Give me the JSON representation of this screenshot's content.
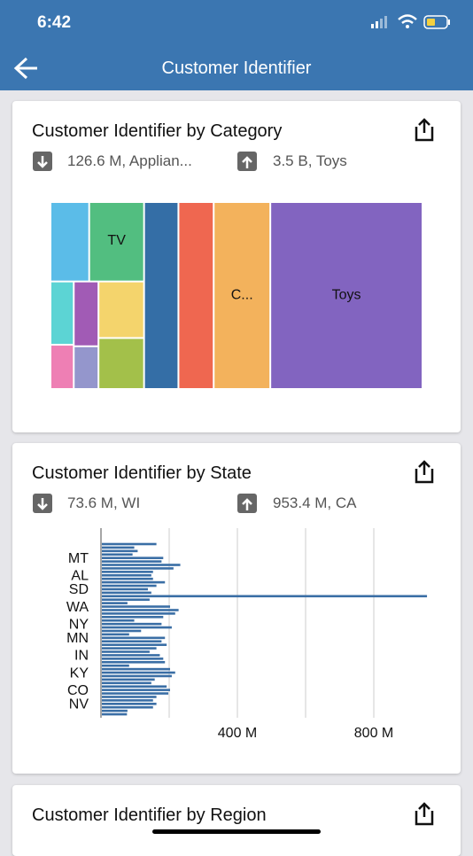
{
  "status_bar": {
    "time": "6:42"
  },
  "header": {
    "title": "Customer Identifier"
  },
  "cards": [
    {
      "title": "Customer Identifier by Category",
      "min_label": "126.6 M, Applian...",
      "max_label": "3.5 B, Toys",
      "chart_data": {
        "type": "treemap",
        "categories": [
          "Toys",
          "C...",
          null,
          null,
          "TV",
          null,
          null,
          null,
          null,
          null,
          null,
          null
        ],
        "values": [
          3500,
          1302,
          811,
          790,
          536,
          378,
          317,
          286,
          197,
          181,
          130,
          126.6
        ],
        "colors": [
          "#8264c0",
          "#f3b25c",
          "#ef6750",
          "#346ea6",
          "#52be80",
          "#5bbce8",
          "#f4d46c",
          "#a3c04a",
          "#a15bb5",
          "#5cd4d4",
          "#9496cc",
          "#ee7fb4"
        ]
      }
    },
    {
      "title": "Customer Identifier by State",
      "min_label": "73.6 M, WI",
      "max_label": "953.4 M, CA",
      "chart_data": {
        "type": "bar",
        "orientation": "horizontal",
        "categories": [
          null,
          null,
          null,
          null,
          "MT",
          null,
          null,
          null,
          null,
          "AL",
          null,
          null,
          null,
          "SD",
          null,
          null,
          null,
          null,
          "WA",
          null,
          null,
          null,
          null,
          "NY",
          null,
          null,
          null,
          "MN",
          null,
          null,
          null,
          null,
          "IN",
          null,
          null,
          null,
          null,
          "KY",
          null,
          null,
          null,
          null,
          "CO",
          null,
          null,
          null,
          "NV",
          null,
          null,
          null
        ],
        "values": [
          160,
          95,
          105,
          90,
          180,
          175,
          230,
          210,
          150,
          145,
          150,
          185,
          160,
          135,
          145,
          953.4,
          140,
          75,
          200,
          225,
          215,
          180,
          95,
          175,
          205,
          115,
          80,
          185,
          175,
          190,
          160,
          140,
          170,
          180,
          185,
          80,
          200,
          215,
          205,
          155,
          145,
          190,
          200,
          195,
          160,
          150,
          160,
          150,
          75,
          73.6
        ],
        "color": "#3a6ea5",
        "xlim": [
          0,
          960
        ],
        "xticks": [
          {
            "value": 400,
            "label": "400 M"
          },
          {
            "value": 800,
            "label": "800 M"
          }
        ],
        "gridlines": [
          0,
          200,
          400,
          600,
          800
        ]
      }
    },
    {
      "title": "Customer Identifier by Region"
    }
  ]
}
